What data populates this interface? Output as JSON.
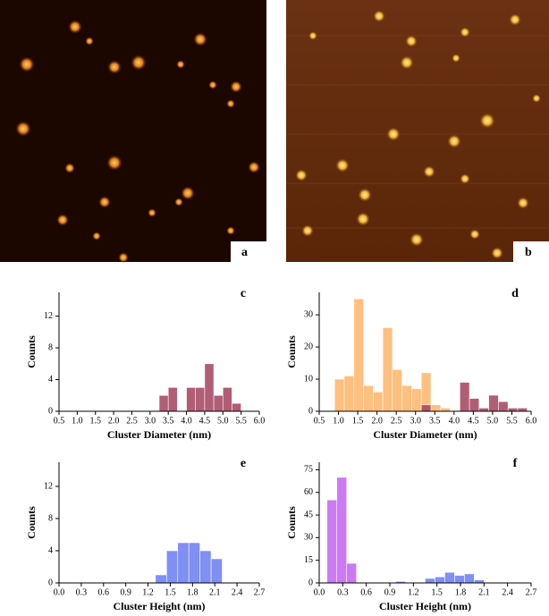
{
  "images": [
    {
      "label": "a"
    },
    {
      "label": "b"
    }
  ],
  "chart_data": [
    {
      "type": "histogram",
      "label": "c",
      "xlabel": "Cluster Diameter (nm)",
      "ylabel": "Counts",
      "xlim": [
        0.5,
        6.0
      ],
      "xticks": [
        {
          "value": 0.5,
          "label": "0.5"
        },
        {
          "value": 1.0,
          "label": "1.0"
        },
        {
          "value": 1.5,
          "label": "1.5"
        },
        {
          "value": 2.0,
          "label": "2.0"
        },
        {
          "value": 2.5,
          "label": "2.5"
        },
        {
          "value": 3.0,
          "label": "3.0"
        },
        {
          "value": 3.5,
          "label": "3.5"
        },
        {
          "value": 4.0,
          "label": "4.0"
        },
        {
          "value": 4.5,
          "label": "4.5"
        },
        {
          "value": 5.0,
          "label": "5.0"
        },
        {
          "value": 5.5,
          "label": "5.5"
        },
        {
          "value": 6.0,
          "label": "6.0"
        }
      ],
      "ylim": [
        0,
        15
      ],
      "yticks": [
        0,
        4,
        8,
        12
      ],
      "series": [
        {
          "color": "#a3435d",
          "bins": [
            3.25,
            3.5,
            3.75,
            4.0,
            4.25,
            4.5,
            4.75,
            5.0,
            5.25,
            5.5
          ],
          "values": [
            2,
            3,
            0,
            3,
            3,
            6,
            2,
            3,
            1
          ]
        }
      ]
    },
    {
      "type": "histogram",
      "label": "d",
      "xlabel": "Cluster Diameter (nm)",
      "ylabel": "Counts",
      "xlim": [
        0.5,
        6.0
      ],
      "xticks": [
        {
          "value": 0.5,
          "label": "0.5"
        },
        {
          "value": 1.0,
          "label": "1.0"
        },
        {
          "value": 1.5,
          "label": "1.5"
        },
        {
          "value": 2.0,
          "label": "2.0"
        },
        {
          "value": 2.5,
          "label": "2.5"
        },
        {
          "value": 3.0,
          "label": "3.0"
        },
        {
          "value": 3.5,
          "label": "3.5"
        },
        {
          "value": 4.0,
          "label": "4.0"
        },
        {
          "value": 4.5,
          "label": "4.5"
        },
        {
          "value": 5.0,
          "label": "5.0"
        },
        {
          "value": 5.5,
          "label": "5.5"
        },
        {
          "value": 6.0,
          "label": "6.0"
        }
      ],
      "ylim": [
        0,
        37
      ],
      "yticks": [
        0,
        10,
        20,
        30
      ],
      "series": [
        {
          "color": "#ffb469",
          "bins": [
            0.9,
            1.15,
            1.4,
            1.65,
            1.9,
            2.15,
            2.4,
            2.65,
            2.9,
            3.15,
            3.4,
            3.65,
            3.9
          ],
          "values": [
            10,
            11,
            35,
            8,
            6,
            26,
            13,
            8,
            7,
            12,
            2,
            1
          ]
        },
        {
          "color": "#a3435d",
          "bins": [
            3.15,
            3.4,
            3.65,
            3.9,
            4.15,
            4.4,
            4.65,
            4.9,
            5.15,
            5.4,
            5.65,
            5.9
          ],
          "values": [
            2,
            0,
            0,
            0,
            9,
            4,
            1,
            5,
            3,
            1,
            1
          ]
        }
      ]
    },
    {
      "type": "histogram",
      "label": "e",
      "xlabel": "Cluster Height (nm)",
      "ylabel": "Counts",
      "xlim": [
        0.0,
        2.7
      ],
      "xticks": [
        {
          "value": 0.0,
          "label": "0.0"
        },
        {
          "value": 0.3,
          "label": "0.3"
        },
        {
          "value": 0.6,
          "label": "0.6"
        },
        {
          "value": 0.9,
          "label": "0.9"
        },
        {
          "value": 1.2,
          "label": "1.2"
        },
        {
          "value": 1.5,
          "label": "1.5"
        },
        {
          "value": 1.8,
          "label": "1.8"
        },
        {
          "value": 2.1,
          "label": "2.1"
        },
        {
          "value": 2.4,
          "label": "2.4"
        },
        {
          "value": 2.7,
          "label": "2.7"
        }
      ],
      "ylim": [
        0,
        15
      ],
      "yticks": [
        0,
        4,
        8,
        12
      ],
      "series": [
        {
          "color": "#6b7cf2",
          "bins": [
            1.3,
            1.45,
            1.6,
            1.75,
            1.9,
            2.05,
            2.2
          ],
          "values": [
            1,
            4,
            5,
            5,
            4,
            3
          ]
        }
      ]
    },
    {
      "type": "histogram",
      "label": "f",
      "xlabel": "Cluster Height (nm)",
      "ylabel": "Counts",
      "xlim": [
        0.0,
        2.7
      ],
      "xticks": [
        {
          "value": 0.0,
          "label": "0.0"
        },
        {
          "value": 0.3,
          "label": "0.3"
        },
        {
          "value": 0.6,
          "label": "0.6"
        },
        {
          "value": 0.9,
          "label": "0.9"
        },
        {
          "value": 1.2,
          "label": "1.2"
        },
        {
          "value": 1.5,
          "label": "1.5"
        },
        {
          "value": 1.8,
          "label": "1.8"
        },
        {
          "value": 2.1,
          "label": "2.1"
        },
        {
          "value": 2.4,
          "label": "2.4"
        },
        {
          "value": 2.7,
          "label": "2.7"
        }
      ],
      "ylim": [
        0,
        80
      ],
      "yticks": [
        0,
        15,
        30,
        45,
        60,
        75
      ],
      "series": [
        {
          "color": "#c463f2",
          "bins": [
            0.1,
            0.225,
            0.35,
            0.475
          ],
          "values": [
            55,
            70,
            13
          ]
        },
        {
          "color": "#6b7cf2",
          "bins": [
            0.975,
            1.1,
            1.225,
            1.35,
            1.475,
            1.6,
            1.725,
            1.85,
            1.975,
            2.1
          ],
          "values": [
            1,
            0,
            0,
            3,
            4,
            7,
            5,
            6,
            2
          ]
        }
      ]
    }
  ]
}
